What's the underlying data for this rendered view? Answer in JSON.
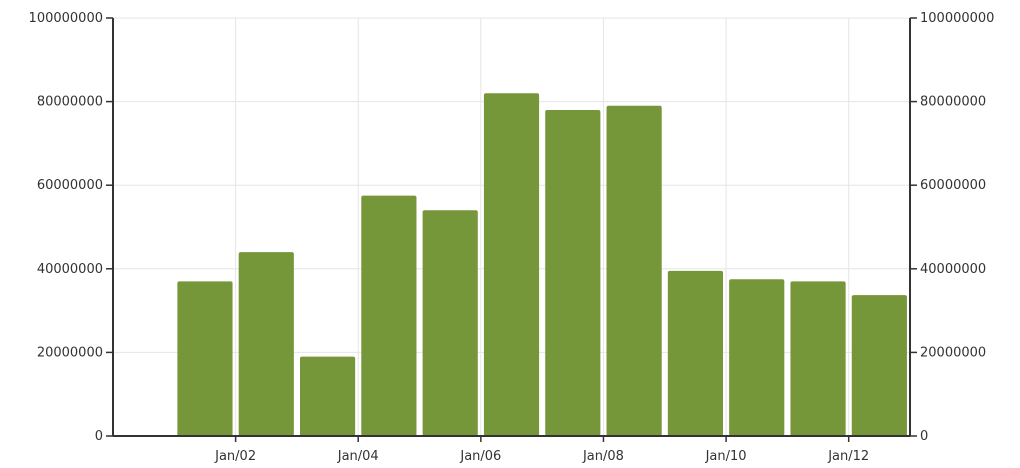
{
  "chart_data": {
    "type": "bar",
    "title": "",
    "xlabel": "",
    "ylabel": "",
    "categories": [
      "2001",
      "2002",
      "2003",
      "2004",
      "2005",
      "2006",
      "2007",
      "2008",
      "2009",
      "2010",
      "2011",
      "2012"
    ],
    "values": [
      37000000,
      44000000,
      19000000,
      57500000,
      54000000,
      82000000,
      78000000,
      79000000,
      39500000,
      37500000,
      37000000,
      33700000
    ],
    "x_tick_labels": [
      "Jan/02",
      "Jan/04",
      "Jan/06",
      "Jan/08",
      "Jan/10",
      "Jan/12"
    ],
    "x_range": [
      "2000-01",
      "2013-01"
    ],
    "ylim": [
      0,
      100000000
    ],
    "y_tick_values": [
      0,
      20000000,
      40000000,
      60000000,
      80000000,
      100000000
    ],
    "y_tick_labels": [
      "0",
      "20000000",
      "40000000",
      "60000000",
      "80000000",
      "100000000"
    ],
    "y_axis_sides": [
      "left",
      "right"
    ],
    "grid": true,
    "legend": "none",
    "bar_color": "#76963a",
    "axis_color": "#333333",
    "grid_color": "#e6e6e6"
  }
}
